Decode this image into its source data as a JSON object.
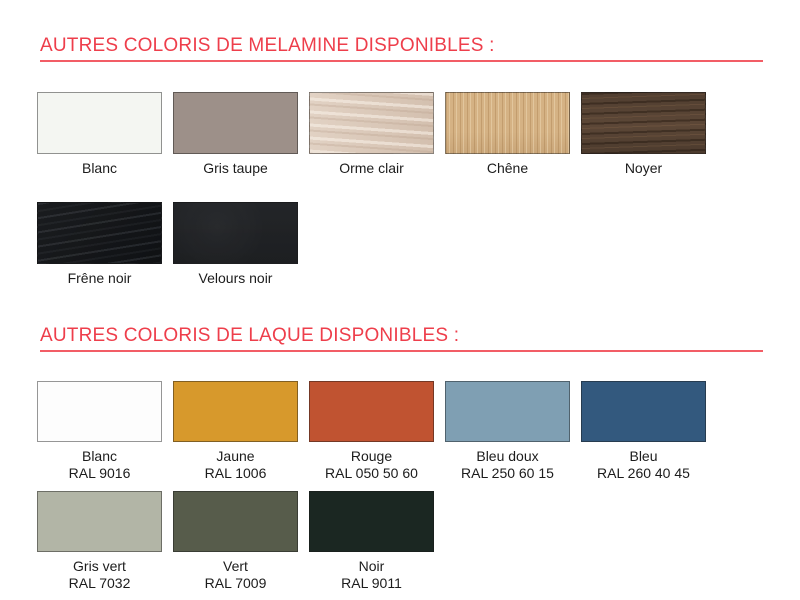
{
  "theme": {
    "heading_color": "#ee3e4b",
    "rule_color": "#f25d66",
    "label_color": "#1c1c1c",
    "background": "#ffffff"
  },
  "sections": [
    {
      "id": "melamine",
      "title": "AUTRES COLORIS DE MELAMINE DISPONIBLES :",
      "rows": [
        [
          {
            "name": "Blanc",
            "swatch": {
              "type": "solid",
              "color": "#f4f6f2"
            }
          },
          {
            "name": "Gris taupe",
            "swatch": {
              "type": "solid",
              "color": "#9d9089"
            }
          },
          {
            "name": "Orme clair",
            "swatch": {
              "type": "texture",
              "texture": "wood-light-elm",
              "base_color": "#d8c6b5"
            }
          },
          {
            "name": "Chêne",
            "swatch": {
              "type": "texture",
              "texture": "wood-oak",
              "base_color": "#d5b284"
            }
          },
          {
            "name": "Noyer",
            "swatch": {
              "type": "texture",
              "texture": "wood-walnut",
              "base_color": "#5c4737"
            }
          }
        ],
        [
          {
            "name": "Frêne noir",
            "swatch": {
              "type": "texture",
              "texture": "wood-black-ash",
              "base_color": "#111316"
            }
          },
          {
            "name": "Velours noir",
            "swatch": {
              "type": "texture",
              "texture": "black-velvet",
              "base_color": "#1f2124"
            }
          }
        ]
      ]
    },
    {
      "id": "laque",
      "title": "AUTRES COLORIS DE LAQUE DISPONIBLES :",
      "rows": [
        [
          {
            "name": "Blanc",
            "ral": "RAL 9016",
            "swatch": {
              "type": "solid",
              "color": "#fdfdfd"
            }
          },
          {
            "name": "Jaune",
            "ral": "RAL 1006",
            "swatch": {
              "type": "solid",
              "color": "#d7992c"
            }
          },
          {
            "name": "Rouge",
            "ral": "RAL 050 50 60",
            "swatch": {
              "type": "solid",
              "color": "#c05331"
            }
          },
          {
            "name": "Bleu doux",
            "ral": "RAL 250 60 15",
            "swatch": {
              "type": "solid",
              "color": "#7f9fb3"
            }
          },
          {
            "name": "Bleu",
            "ral": "RAL 260 40 45",
            "swatch": {
              "type": "solid",
              "color": "#33597e"
            }
          }
        ],
        [
          {
            "name": "Gris vert",
            "ral": "RAL 7032",
            "swatch": {
              "type": "solid",
              "color": "#b2b5a6"
            }
          },
          {
            "name": "Vert",
            "ral": "RAL 7009",
            "swatch": {
              "type": "solid",
              "color": "#575c4b"
            }
          },
          {
            "name": "Noir",
            "ral": "RAL 9011",
            "swatch": {
              "type": "solid",
              "color": "#1b2722"
            }
          }
        ]
      ]
    }
  ]
}
